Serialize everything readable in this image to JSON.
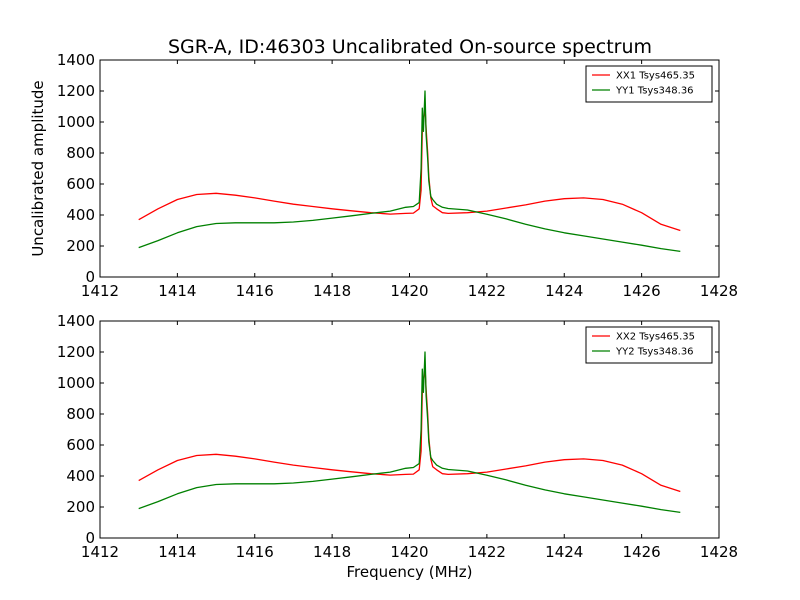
{
  "title": "SGR-A, ID:46303 Uncalibrated On-source spectrum",
  "colors": {
    "xx": "#ff0000",
    "yy": "#008000",
    "frame": "#000000",
    "background": "#ffffff"
  },
  "chart_data": [
    {
      "type": "line",
      "xlabel": "",
      "ylabel": "Uncalibrated amplitude",
      "xlim": [
        1412,
        1428
      ],
      "ylim": [
        0,
        1400
      ],
      "xticks": [
        1412,
        1414,
        1416,
        1418,
        1420,
        1422,
        1424,
        1426,
        1428
      ],
      "yticks": [
        0,
        200,
        400,
        600,
        800,
        1000,
        1200,
        1400
      ],
      "grid": false,
      "legend_position": "top-right",
      "series": [
        {
          "name": "XX1 Tsys465.35",
          "color": "#ff0000",
          "x": [
            1413.0,
            1413.5,
            1414.0,
            1414.5,
            1415.0,
            1415.5,
            1416.0,
            1416.5,
            1417.0,
            1417.5,
            1418.0,
            1418.5,
            1419.0,
            1419.5,
            1419.9,
            1420.1,
            1420.25,
            1420.3,
            1420.33,
            1420.36,
            1420.4,
            1420.43,
            1420.47,
            1420.5,
            1420.55,
            1420.6,
            1420.7,
            1420.85,
            1421.0,
            1421.5,
            1422.0,
            1422.5,
            1423.0,
            1423.5,
            1424.0,
            1424.5,
            1425.0,
            1425.5,
            1426.0,
            1426.5,
            1427.0
          ],
          "y": [
            370,
            440,
            500,
            532,
            540,
            528,
            510,
            490,
            470,
            455,
            440,
            427,
            415,
            406,
            410,
            412,
            440,
            560,
            940,
            1000,
            1100,
            960,
            800,
            650,
            510,
            460,
            440,
            415,
            410,
            415,
            425,
            445,
            465,
            490,
            505,
            510,
            500,
            470,
            415,
            340,
            300
          ]
        },
        {
          "name": "YY1 Tsys348.36",
          "color": "#008000",
          "x": [
            1413.0,
            1413.5,
            1414.0,
            1414.5,
            1415.0,
            1415.5,
            1416.0,
            1416.5,
            1417.0,
            1417.5,
            1418.0,
            1418.5,
            1419.0,
            1419.5,
            1419.9,
            1420.1,
            1420.25,
            1420.3,
            1420.33,
            1420.36,
            1420.4,
            1420.43,
            1420.47,
            1420.5,
            1420.55,
            1420.6,
            1420.7,
            1420.85,
            1421.0,
            1421.5,
            1422.0,
            1422.5,
            1423.0,
            1423.5,
            1424.0,
            1424.5,
            1425.0,
            1425.5,
            1426.0,
            1426.5,
            1427.0
          ],
          "y": [
            190,
            235,
            285,
            325,
            345,
            350,
            350,
            350,
            355,
            365,
            380,
            395,
            410,
            425,
            450,
            455,
            480,
            700,
            1090,
            940,
            1200,
            920,
            760,
            620,
            520,
            500,
            470,
            450,
            442,
            432,
            405,
            375,
            340,
            310,
            285,
            265,
            245,
            225,
            205,
            183,
            165
          ]
        }
      ]
    },
    {
      "type": "line",
      "xlabel": "Frequency (MHz)",
      "ylabel": "",
      "xlim": [
        1412,
        1428
      ],
      "ylim": [
        0,
        1400
      ],
      "xticks": [
        1412,
        1414,
        1416,
        1418,
        1420,
        1422,
        1424,
        1426,
        1428
      ],
      "yticks": [
        0,
        200,
        400,
        600,
        800,
        1000,
        1200,
        1400
      ],
      "grid": false,
      "legend_position": "top-right",
      "series": [
        {
          "name": "XX2 Tsys465.35",
          "color": "#ff0000",
          "x": [
            1413.0,
            1413.5,
            1414.0,
            1414.5,
            1415.0,
            1415.5,
            1416.0,
            1416.5,
            1417.0,
            1417.5,
            1418.0,
            1418.5,
            1419.0,
            1419.5,
            1419.9,
            1420.1,
            1420.25,
            1420.3,
            1420.33,
            1420.36,
            1420.4,
            1420.43,
            1420.47,
            1420.5,
            1420.55,
            1420.6,
            1420.7,
            1420.85,
            1421.0,
            1421.5,
            1422.0,
            1422.5,
            1423.0,
            1423.5,
            1424.0,
            1424.5,
            1425.0,
            1425.5,
            1426.0,
            1426.5,
            1427.0
          ],
          "y": [
            370,
            440,
            500,
            532,
            540,
            528,
            510,
            490,
            470,
            455,
            440,
            427,
            415,
            406,
            410,
            412,
            440,
            560,
            940,
            1000,
            1100,
            960,
            800,
            650,
            510,
            460,
            440,
            415,
            410,
            415,
            425,
            445,
            465,
            490,
            505,
            510,
            500,
            470,
            415,
            340,
            300
          ]
        },
        {
          "name": "YY2 Tsys348.36",
          "color": "#008000",
          "x": [
            1413.0,
            1413.5,
            1414.0,
            1414.5,
            1415.0,
            1415.5,
            1416.0,
            1416.5,
            1417.0,
            1417.5,
            1418.0,
            1418.5,
            1419.0,
            1419.5,
            1419.9,
            1420.1,
            1420.25,
            1420.3,
            1420.33,
            1420.36,
            1420.4,
            1420.43,
            1420.47,
            1420.5,
            1420.55,
            1420.6,
            1420.7,
            1420.85,
            1421.0,
            1421.5,
            1422.0,
            1422.5,
            1423.0,
            1423.5,
            1424.0,
            1424.5,
            1425.0,
            1425.5,
            1426.0,
            1426.5,
            1427.0
          ],
          "y": [
            190,
            235,
            285,
            325,
            345,
            350,
            350,
            350,
            355,
            365,
            380,
            395,
            410,
            425,
            450,
            455,
            480,
            700,
            1090,
            940,
            1200,
            920,
            760,
            620,
            520,
            500,
            470,
            450,
            442,
            432,
            405,
            375,
            340,
            310,
            285,
            265,
            245,
            225,
            205,
            183,
            165
          ]
        }
      ]
    }
  ]
}
